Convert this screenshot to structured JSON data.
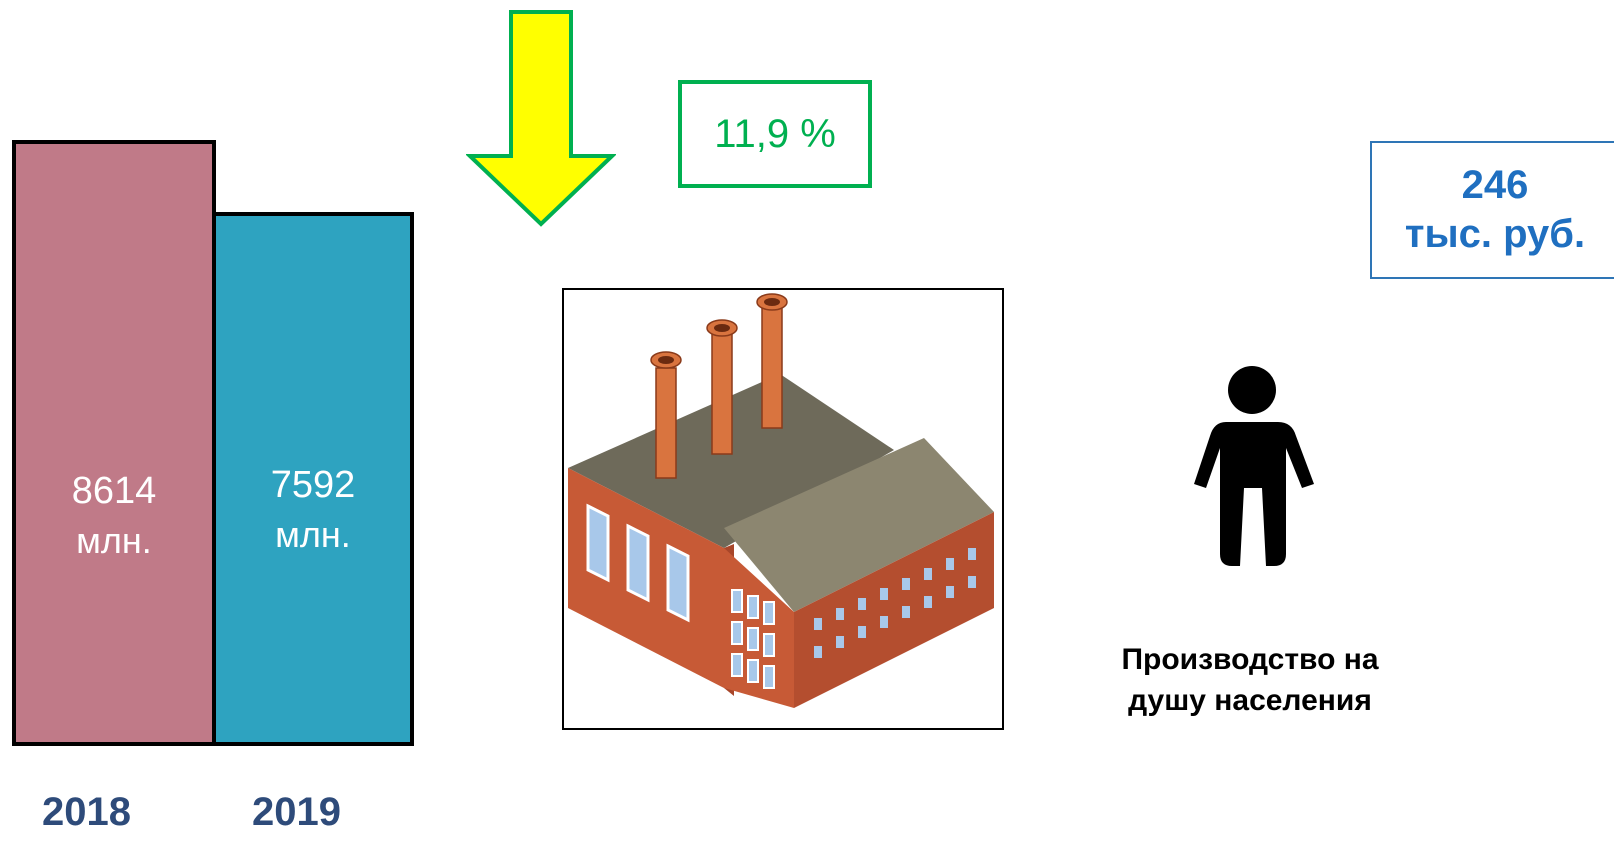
{
  "chart_data": {
    "type": "bar",
    "categories": [
      "2018",
      "2019"
    ],
    "values": [
      8614,
      7592
    ],
    "value_labels": [
      {
        "number": "8614",
        "unit": "млн."
      },
      {
        "number": "7592",
        "unit": "млн."
      }
    ],
    "bar_colors": [
      "#c07a88",
      "#2ea3c0"
    ],
    "change_percent_label": "11,9 %",
    "change_direction": "down"
  },
  "per_capita": {
    "value": "246",
    "unit": "тыс. руб.",
    "caption_line1": "Производство на",
    "caption_line2": "душу населения"
  },
  "colors": {
    "arrow_fill": "#ffff00",
    "arrow_outline": "#00b050",
    "percent_box": "#00b050",
    "value_box_text": "#1f6fc0",
    "year_text": "#2e4b7a"
  },
  "icons": [
    "down-arrow-icon",
    "factory-icon",
    "person-icon"
  ]
}
